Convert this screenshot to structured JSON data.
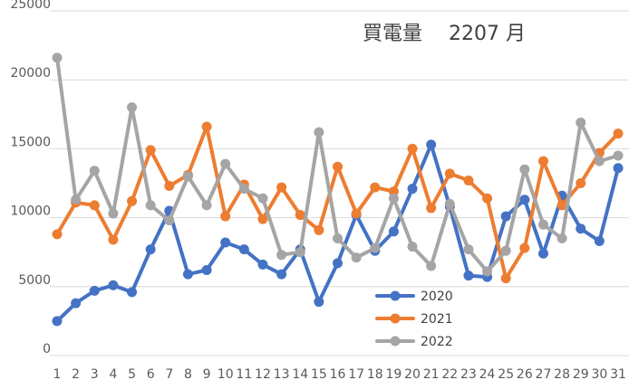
{
  "chart_data": {
    "type": "line",
    "title": "買電量　 2207 月",
    "xlabel": "",
    "ylabel": "",
    "categories": [
      "1",
      "2",
      "3",
      "4",
      "5",
      "6",
      "7",
      "8",
      "9",
      "10",
      "11",
      "12",
      "13",
      "14",
      "15",
      "16",
      "17",
      "18",
      "19",
      "20",
      "21",
      "22",
      "23",
      "24",
      "25",
      "26",
      "27",
      "28",
      "29",
      "30",
      "31"
    ],
    "ylim": [
      0,
      25000
    ],
    "yticks": [
      0,
      5000,
      10000,
      15000,
      20000,
      25000
    ],
    "ytick_labels": [
      "0",
      "5000",
      "10000",
      "15000",
      "20000",
      "25000"
    ],
    "grid": true,
    "legend_position": "bottom-center",
    "series": [
      {
        "name": "2020",
        "color": "#4472C4",
        "values": [
          2500,
          3800,
          4700,
          5100,
          4600,
          7700,
          10500,
          5900,
          6200,
          8200,
          7700,
          6600,
          5900,
          7700,
          3900,
          6700,
          10200,
          7600,
          9000,
          12100,
          15300,
          10800,
          5800,
          5700,
          10100,
          11300,
          7400,
          11600,
          9200,
          8300,
          13600
        ]
      },
      {
        "name": "2021",
        "color": "#ED7D31",
        "values": [
          8800,
          11100,
          10900,
          8400,
          11200,
          14900,
          12300,
          13100,
          16600,
          10100,
          12400,
          9900,
          12200,
          10200,
          9100,
          13700,
          10300,
          12200,
          11900,
          15000,
          10700,
          13200,
          12700,
          11400,
          5600,
          7800,
          14100,
          10900,
          12500,
          14700,
          16100
        ]
      },
      {
        "name": "2022",
        "color": "#A5A5A5",
        "values": [
          21600,
          11300,
          13400,
          10300,
          18000,
          10900,
          9800,
          13000,
          10900,
          13900,
          12100,
          11400,
          7300,
          7500,
          16200,
          8500,
          7100,
          7800,
          11400,
          7900,
          6500,
          11000,
          7700,
          6100,
          7600,
          13500,
          9500,
          8500,
          16900,
          14100,
          14500
        ]
      }
    ]
  }
}
